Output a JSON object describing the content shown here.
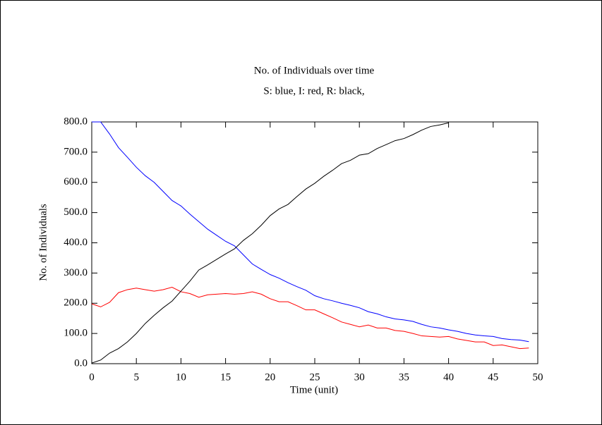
{
  "chart_data": {
    "type": "line",
    "title": "No. of Individuals over time",
    "subtitle": "S: blue, I: red, R: black,",
    "xlabel": "Time (unit)",
    "ylabel": "No. of Individuals",
    "x": [
      0,
      1,
      2,
      3,
      4,
      5,
      6,
      7,
      8,
      9,
      10,
      11,
      12,
      13,
      14,
      15,
      16,
      17,
      18,
      19,
      20,
      21,
      22,
      23,
      24,
      25,
      26,
      27,
      28,
      29,
      30,
      31,
      32,
      33,
      34,
      35,
      36,
      37,
      38,
      39,
      40,
      41,
      42,
      43,
      44,
      45,
      46,
      47,
      48,
      49
    ],
    "series": [
      {
        "name": "S",
        "color": "#0000ff",
        "values": [
          800,
          800,
          760,
          715,
          683,
          650,
          622,
          600,
          570,
          540,
          522,
          495,
          470,
          445,
          425,
          405,
          390,
          360,
          330,
          312,
          295,
          283,
          268,
          255,
          243,
          225,
          215,
          208,
          200,
          193,
          185,
          172,
          165,
          155,
          148,
          145,
          140,
          130,
          122,
          118,
          112,
          107,
          100,
          95,
          92,
          90,
          83,
          80,
          78,
          73
        ]
      },
      {
        "name": "I",
        "color": "#ff0000",
        "values": [
          198,
          188,
          203,
          235,
          245,
          250,
          245,
          240,
          245,
          253,
          238,
          232,
          220,
          228,
          230,
          232,
          230,
          232,
          238,
          230,
          215,
          205,
          205,
          192,
          178,
          178,
          165,
          152,
          138,
          130,
          122,
          128,
          118,
          118,
          110,
          107,
          100,
          92,
          90,
          88,
          90,
          82,
          77,
          72,
          72,
          60,
          62,
          56,
          50,
          52
        ]
      },
      {
        "name": "R",
        "color": "#000000",
        "values": [
          2,
          12,
          35,
          50,
          72,
          100,
          133,
          160,
          185,
          207,
          240,
          273,
          310,
          327,
          345,
          363,
          380,
          408,
          430,
          458,
          490,
          512,
          527,
          553,
          578,
          597,
          620,
          640,
          662,
          673,
          690,
          695,
          712,
          725,
          738,
          745,
          758,
          773,
          785,
          790,
          797,
          null,
          null,
          null,
          null,
          null,
          null,
          null,
          null,
          null
        ]
      }
    ],
    "xlim": [
      0,
      50
    ],
    "xticks": [
      0,
      5,
      10,
      15,
      20,
      25,
      30,
      35,
      40,
      45,
      50
    ],
    "ylim": [
      0,
      800
    ],
    "yticks": [
      {
        "value": 0,
        "label": "0.0"
      },
      {
        "value": 100,
        "label": "100.0"
      },
      {
        "value": 200,
        "label": "200.0"
      },
      {
        "value": 300,
        "label": "300.0"
      },
      {
        "value": 400,
        "label": "400.0"
      },
      {
        "value": 500,
        "label": "500.0"
      },
      {
        "value": 600,
        "label": "600.0"
      },
      {
        "value": 700,
        "label": "700.0"
      },
      {
        "value": 800,
        "label": "800.0"
      }
    ]
  }
}
